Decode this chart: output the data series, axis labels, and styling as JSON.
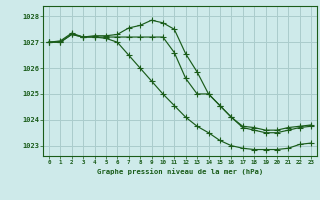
{
  "xlabel": "Graphe pression niveau de la mer (hPa)",
  "bg_color": "#ceeaea",
  "grid_color": "#aacccc",
  "line_color": "#1a5c1a",
  "xlim": [
    -0.5,
    23.5
  ],
  "ylim": [
    1022.6,
    1028.4
  ],
  "yticks": [
    1023,
    1024,
    1025,
    1026,
    1027,
    1028
  ],
  "xticks": [
    0,
    1,
    2,
    3,
    4,
    5,
    6,
    7,
    8,
    9,
    10,
    11,
    12,
    13,
    14,
    15,
    16,
    17,
    18,
    19,
    20,
    21,
    22,
    23
  ],
  "series1_x": [
    0,
    1,
    2,
    3,
    4,
    5,
    6,
    7,
    8,
    9,
    10,
    11,
    12,
    13,
    14,
    15,
    16,
    17,
    18,
    19,
    20,
    21,
    22,
    23
  ],
  "series1_y": [
    1027.0,
    1027.05,
    1027.35,
    1027.2,
    1027.25,
    1027.25,
    1027.3,
    1027.55,
    1027.65,
    1027.85,
    1027.75,
    1027.5,
    1026.55,
    1025.85,
    1025.0,
    1024.55,
    1024.1,
    1023.75,
    1023.7,
    1023.6,
    1023.6,
    1023.7,
    1023.75,
    1023.8
  ],
  "series2_x": [
    0,
    1,
    2,
    3,
    4,
    5,
    6,
    7,
    8,
    9,
    10,
    11,
    12,
    13,
    14,
    15,
    16,
    17,
    18,
    19,
    20,
    21,
    22,
    23
  ],
  "series2_y": [
    1027.0,
    1027.0,
    1027.3,
    1027.2,
    1027.2,
    1027.2,
    1027.2,
    1027.2,
    1027.2,
    1027.2,
    1027.2,
    1026.6,
    1025.6,
    1025.0,
    1025.0,
    1024.55,
    1024.1,
    1023.7,
    1023.6,
    1023.5,
    1023.5,
    1023.6,
    1023.7,
    1023.75
  ],
  "series3_x": [
    0,
    1,
    2,
    3,
    4,
    5,
    6,
    7,
    8,
    9,
    10,
    11,
    12,
    13,
    14,
    15,
    16,
    17,
    18,
    19,
    20,
    21,
    22,
    23
  ],
  "series3_y": [
    1027.0,
    1027.0,
    1027.3,
    1027.2,
    1027.2,
    1027.15,
    1027.0,
    1026.5,
    1026.0,
    1025.5,
    1025.0,
    1024.55,
    1024.1,
    1023.75,
    1023.5,
    1023.2,
    1023.0,
    1022.9,
    1022.85,
    1022.85,
    1022.85,
    1022.9,
    1023.05,
    1023.1
  ]
}
